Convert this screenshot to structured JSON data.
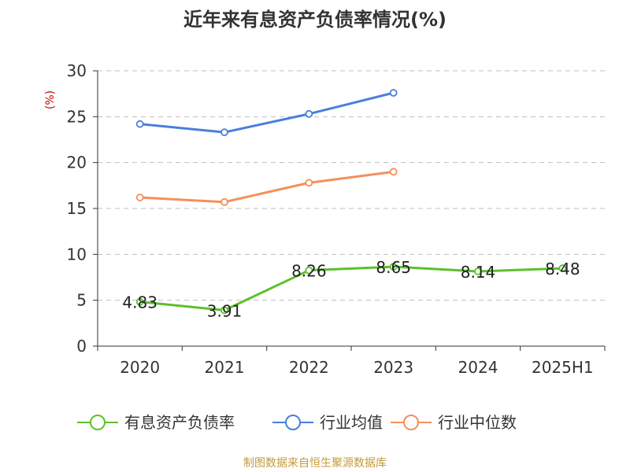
{
  "chart_data": {
    "type": "line",
    "title": "近年来有息资产负债率情况(%)",
    "ylabel": "(%)",
    "categories": [
      "2020",
      "2021",
      "2022",
      "2023",
      "2024",
      "2025H1"
    ],
    "yticks": [
      "0",
      "5",
      "10",
      "15",
      "20",
      "25",
      "30"
    ],
    "ylim": [
      0,
      30
    ],
    "grid": true,
    "legend_position": "bottom",
    "series": [
      {
        "name": "有息资产负债率",
        "color": "#5bc12b",
        "values": [
          4.83,
          3.91,
          8.26,
          8.65,
          8.14,
          8.48
        ],
        "labels": [
          "4.83",
          "3.91",
          "8.26",
          "8.65",
          "8.14",
          "8.48"
        ]
      },
      {
        "name": "行业均值",
        "color": "#4a7fdb",
        "values": [
          24.2,
          23.3,
          25.3,
          27.6,
          null,
          null
        ]
      },
      {
        "name": "行业中位数",
        "color": "#f4905a",
        "values": [
          16.2,
          15.7,
          17.8,
          19.0,
          null,
          null
        ]
      }
    ],
    "source": "制图数据来自恒生聚源数据库"
  }
}
